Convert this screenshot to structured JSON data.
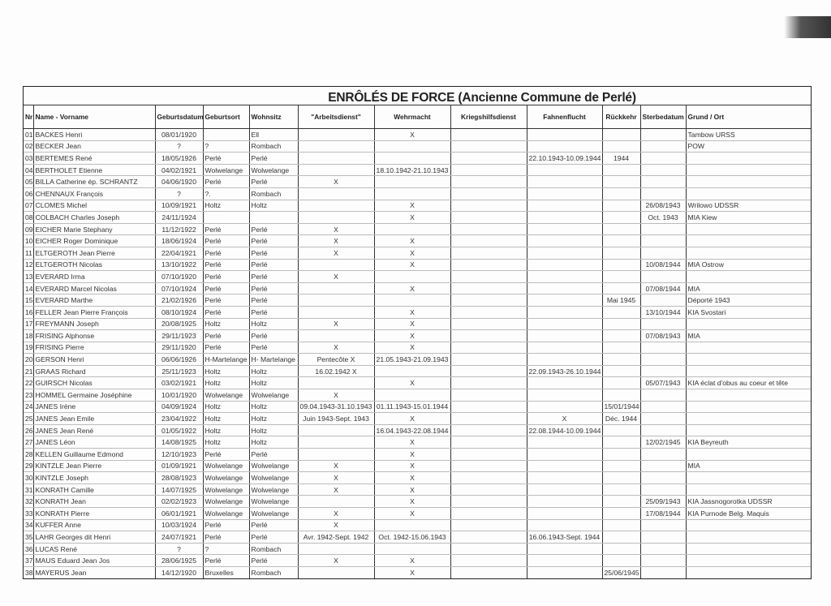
{
  "document": {
    "title": "ENRÔLÉS DE FORCE  (Ancienne Commune de Perlé)",
    "columns": [
      "Nr",
      "Name - Vorname",
      "Geburtsdatum",
      "Geburtsort",
      "Wohnsitz",
      "\"Arbeitsdienst\"",
      "Wehrmacht",
      "Kriegshilfsdienst",
      "Fahnenflucht",
      "Rückkehr",
      "Sterbedatum",
      "Grund / Ort"
    ],
    "rows": [
      [
        "01",
        "BACKES Henri",
        "08/01/1920",
        "",
        "Ell",
        "",
        "X",
        "",
        "",
        "",
        "",
        "Tambow URSS"
      ],
      [
        "02",
        "BECKER Jean",
        "?",
        "?",
        "Rombach",
        "",
        "",
        "",
        "",
        "",
        "",
        "POW"
      ],
      [
        "03",
        "BERTEMES René",
        "18/05/1926",
        "Perlé",
        "Perlé",
        "",
        "",
        "",
        "22.10.1943-10.09.1944",
        "1944",
        "",
        ""
      ],
      [
        "04",
        "BERTHOLET Etienne",
        "04/02/1921",
        "Wolwelange",
        "Wolwelange",
        "",
        "18.10.1942-21.10.1943",
        "",
        "",
        "",
        "",
        ""
      ],
      [
        "05",
        "BILLA Catherine ép. SCHRANTZ",
        "04/06/1920",
        "Perlé",
        "Perlé",
        "X",
        "",
        "",
        "",
        "",
        "",
        ""
      ],
      [
        "06",
        "CHENNAUX François",
        "?",
        "?.",
        "Rombach",
        "",
        "",
        "",
        "",
        "",
        "",
        ""
      ],
      [
        "07",
        "CLOMES Michel",
        "10/09/1921",
        "Holtz",
        "Holtz",
        "",
        "X",
        "",
        "",
        "",
        "26/08/1943",
        "Wrilowo UDSSR"
      ],
      [
        "08",
        "COLBACH Charles Joseph",
        "24/11/1924",
        "",
        "",
        "",
        "X",
        "",
        "",
        "",
        "Oct. 1943",
        "MIA Kiew"
      ],
      [
        "09",
        "EICHER Marie Stephany",
        "11/12/1922",
        "Perlé",
        "Perlé",
        "X",
        "",
        "",
        "",
        "",
        "",
        ""
      ],
      [
        "10",
        "EICHER Roger Dominique",
        "18/06/1924",
        "Perlé",
        "Perlé",
        "X",
        "X",
        "",
        "",
        "",
        "",
        ""
      ],
      [
        "11",
        "ELTGEROTH Jean Pierre",
        "22/04/1921",
        "Perlé",
        "Perlé",
        "X",
        "X",
        "",
        "",
        "",
        "",
        ""
      ],
      [
        "12",
        "ELTGEROTH Nicolas",
        "13/10/1922",
        "Perlé",
        "Perlé",
        "",
        "X",
        "",
        "",
        "",
        "10/08/1944",
        "MIA Ostrow"
      ],
      [
        "13",
        "EVERARD Irma",
        "07/10/1920",
        "Perlé",
        "Perlé",
        "X",
        "",
        "",
        "",
        "",
        "",
        ""
      ],
      [
        "14",
        "EVERARD Marcel Nicolas",
        "07/10/1924",
        "Perlé",
        "Perlé",
        "",
        "X",
        "",
        "",
        "",
        "07/08/1944",
        "MIA"
      ],
      [
        "15",
        "EVERARD Marthe",
        "21/02/1926",
        "Perlé",
        "Perlé",
        "",
        "",
        "",
        "",
        "Mai 1945",
        "",
        "Déporté 1943"
      ],
      [
        "16",
        "FELLER Jean Pierre François",
        "08/10/1924",
        "Perlé",
        "Perlé",
        "",
        "X",
        "",
        "",
        "",
        "13/10/1944",
        "KIA Svostari"
      ],
      [
        "17",
        "FREYMANN Joseph",
        "20/08/1925",
        "Holtz",
        "Holtz",
        "X",
        "X",
        "",
        "",
        "",
        "",
        ""
      ],
      [
        "18",
        "FRISING Alphonse",
        "29/11/1923",
        "Perlé",
        "Perlé",
        "",
        "X",
        "",
        "",
        "",
        "07/08/1943",
        "MIA"
      ],
      [
        "19",
        "FRISING Pierre",
        "29/11/1920",
        "Perlé",
        "Perlé",
        "X",
        "X",
        "",
        "",
        "",
        "",
        ""
      ],
      [
        "20",
        "GERSON Henri",
        "06/06/1926",
        "H-Martelange",
        "H- Martelange",
        "Pentecôte X",
        "21.05.1943-21.09.1943",
        "",
        "",
        "",
        "",
        ""
      ],
      [
        "21",
        "GRAAS Richard",
        "25/11/1923",
        "Holtz",
        "Holtz",
        "16.02.1942 X",
        "",
        "",
        "22.09.1943-26.10.1944",
        "",
        "",
        ""
      ],
      [
        "22",
        "GUIRSCH Nicolas",
        "03/02/1921",
        "Holtz",
        "Holtz",
        "",
        "X",
        "",
        "",
        "",
        "05/07/1943",
        "KIA éclat d'obus au coeur et tête"
      ],
      [
        "23",
        "HOMMEL Germaine Joséphine",
        "10/01/1920",
        "Wolwelange",
        "Wolwelange",
        "X",
        "",
        "",
        "",
        "",
        "",
        ""
      ],
      [
        "24",
        "JANES Irène",
        "04/09/1924",
        "Holtz",
        "Holtz",
        "09.04.1943-31.10.1943",
        "01.11.1943-15.01.1944",
        "",
        "",
        "15/01/1944",
        "",
        ""
      ],
      [
        "25",
        "JANES Jean Emile",
        "23/04/1922",
        "Holtz",
        "Holtz",
        "Juin 1943-Sept. 1943",
        "X",
        "",
        "X",
        "Déc. 1944",
        "",
        ""
      ],
      [
        "26",
        "JANES Jean René",
        "01/05/1922",
        "Holtz",
        "Holtz",
        "",
        "16.04.1943-22.08.1944",
        "",
        "22.08.1944-10.09.1944",
        "",
        "",
        ""
      ],
      [
        "27",
        "JANES Léon",
        "14/08/1925",
        "Holtz",
        "Holtz",
        "",
        "X",
        "",
        "",
        "",
        "12/02/1945",
        "KIA Beyreuth"
      ],
      [
        "28",
        "KELLEN Guillaume Edmond",
        "12/10/1923",
        "Perlé",
        "Perlé",
        "",
        "X",
        "",
        "",
        "",
        "",
        ""
      ],
      [
        "29",
        "KINTZLE Jean Pierre",
        "01/09/1921",
        "Wolwelange",
        "Wolwelange",
        "X",
        "X",
        "",
        "",
        "",
        "",
        "MIA"
      ],
      [
        "30",
        "KINTZLE Joseph",
        "28/08/1923",
        "Wolwelange",
        "Wolwelange",
        "X",
        "X",
        "",
        "",
        "",
        "",
        ""
      ],
      [
        "31",
        "KONRATH Camille",
        "14/07/1925",
        "Wolwelange",
        "Wolwelange",
        "X",
        "X",
        "",
        "",
        "",
        "",
        ""
      ],
      [
        "32",
        "KONRATH Jean",
        "02/02/1923",
        "Wolwelange",
        "Wolwelange",
        "",
        "X",
        "",
        "",
        "",
        "25/09/1943",
        "KIA Jassnogorotka UDSSR"
      ],
      [
        "33",
        "KONRATH Pierre",
        "06/01/1921",
        "Wolwelange",
        "Wolwelange",
        "X",
        "X",
        "",
        "",
        "",
        "17/08/1944",
        "KIA Purnode Belg. Maquis"
      ],
      [
        "34",
        "KUFFER Anne",
        "10/03/1924",
        "Perlé",
        "Perlé",
        "X",
        "",
        "",
        "",
        "",
        "",
        ""
      ],
      [
        "35",
        "LAHR Georges dit Henri",
        "24/07/1921",
        "Perlé",
        "Perlé",
        "Avr. 1942-Sept. 1942",
        "Oct. 1942-15.06.1943",
        "",
        "16.06.1943-Sept. 1944",
        "",
        "",
        ""
      ],
      [
        "36",
        "LUCAS René",
        "?",
        "?",
        "Rombach",
        "",
        "",
        "",
        "",
        "",
        "",
        ""
      ],
      [
        "37",
        "MAUS Eduard Jean Jos",
        "28/06/1925",
        "Perlé",
        "Perlé",
        "X",
        "X",
        "",
        "",
        "",
        "",
        ""
      ],
      [
        "38",
        "MAYERUS Jean",
        "14/12/1920",
        "Bruxelles",
        "Rombach",
        "",
        "X",
        "",
        "",
        "25/06/1945",
        "",
        ""
      ]
    ]
  }
}
